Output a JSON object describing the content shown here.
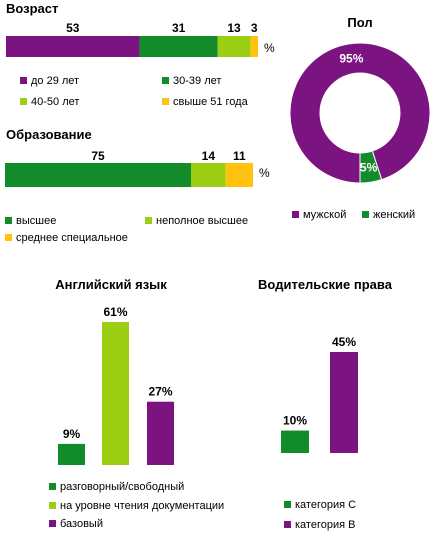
{
  "colors": {
    "purple": "#7b1380",
    "dark_green": "#128b2b",
    "light_green": "#9ccf13",
    "yellow": "#ffc20e"
  },
  "chart_data": [
    {
      "id": "age",
      "type": "bar",
      "orientation": "horizontal-stacked",
      "title": "Возраст",
      "unit": "%",
      "series": [
        {
          "name": "до 29 лет",
          "value": 53,
          "label": "53",
          "color": "#7b1380"
        },
        {
          "name": "30-39 лет",
          "value": 31,
          "label": "31",
          "color": "#128b2b"
        },
        {
          "name": "40-50 лет",
          "value": 13,
          "label": "13",
          "color": "#9ccf13"
        },
        {
          "name": "свыше 51 года",
          "value": 3,
          "label": "3",
          "color": "#ffc20e"
        }
      ],
      "legend_position": "bottom"
    },
    {
      "id": "education",
      "type": "bar",
      "orientation": "horizontal-stacked",
      "title": "Образование",
      "unit": "%",
      "series": [
        {
          "name": "высшее",
          "value": 75,
          "label": "75",
          "color": "#128b2b"
        },
        {
          "name": "неполное высшее",
          "value": 14,
          "label": "14",
          "color": "#9ccf13"
        },
        {
          "name": "среднее специальное",
          "value": 11,
          "label": "11",
          "color": "#ffc20e"
        }
      ],
      "legend_position": "bottom"
    },
    {
      "id": "gender",
      "type": "pie",
      "variant": "donut",
      "title": "Пол",
      "slices": [
        {
          "name": "мужской",
          "value": 95,
          "label": "95%",
          "color": "#7b1380"
        },
        {
          "name": "женский",
          "value": 5,
          "label": "5%",
          "color": "#128b2b"
        }
      ],
      "legend_position": "bottom"
    },
    {
      "id": "english",
      "type": "bar",
      "title": "Английский язык",
      "ylim": [
        0,
        61
      ],
      "series": [
        {
          "name": "разговорный/свободный",
          "value": 9,
          "label": "9%",
          "color": "#128b2b"
        },
        {
          "name": "на уровне чтения документации",
          "value": 61,
          "label": "61%",
          "color": "#9ccf13"
        },
        {
          "name": "базовый",
          "value": 27,
          "label": "27%",
          "color": "#7b1380"
        }
      ],
      "legend_position": "bottom"
    },
    {
      "id": "license",
      "type": "bar",
      "title": "Водительские права",
      "ylim": [
        0,
        45
      ],
      "series": [
        {
          "name": "категория С",
          "value": 10,
          "label": "10%",
          "color": "#128b2b"
        },
        {
          "name": "категория В",
          "value": 45,
          "label": "45%",
          "color": "#7b1380"
        }
      ],
      "legend_position": "bottom"
    }
  ]
}
